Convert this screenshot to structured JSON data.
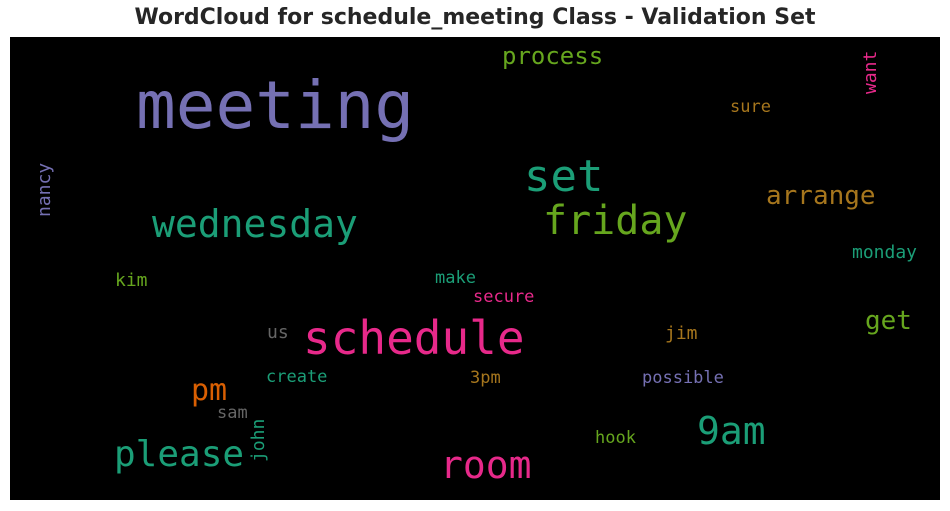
{
  "chart_data": {
    "type": "wordcloud",
    "title": "WordCloud for schedule_meeting Class - Validation Set",
    "background": "#000000",
    "words": [
      {
        "text": "meeting",
        "color": "#7570b3",
        "rotate": 0
      },
      {
        "text": "process",
        "color": "#66a61e",
        "rotate": 0
      },
      {
        "text": "want",
        "color": "#e7298a",
        "rotate": -90
      },
      {
        "text": "sure",
        "color": "#a6761d",
        "rotate": 0
      },
      {
        "text": "set",
        "color": "#1b9e77",
        "rotate": 0
      },
      {
        "text": "nancy",
        "color": "#7570b3",
        "rotate": -90
      },
      {
        "text": "arrange",
        "color": "#a6761d",
        "rotate": 0
      },
      {
        "text": "wednesday",
        "color": "#1b9e77",
        "rotate": 0
      },
      {
        "text": "friday",
        "color": "#66a61e",
        "rotate": 0
      },
      {
        "text": "monday",
        "color": "#1b9e77",
        "rotate": 0
      },
      {
        "text": "kim",
        "color": "#66a61e",
        "rotate": 0
      },
      {
        "text": "make",
        "color": "#1b9e77",
        "rotate": 0
      },
      {
        "text": "secure",
        "color": "#e7298a",
        "rotate": 0
      },
      {
        "text": "get",
        "color": "#66a61e",
        "rotate": 0
      },
      {
        "text": "us",
        "color": "#666666",
        "rotate": 0
      },
      {
        "text": "schedule",
        "color": "#e7298a",
        "rotate": 0
      },
      {
        "text": "jim",
        "color": "#a6761d",
        "rotate": 0
      },
      {
        "text": "pm",
        "color": "#d95f02",
        "rotate": 0
      },
      {
        "text": "create",
        "color": "#1b9e77",
        "rotate": 0
      },
      {
        "text": "3pm",
        "color": "#a6761d",
        "rotate": 0
      },
      {
        "text": "possible",
        "color": "#7570b3",
        "rotate": 0
      },
      {
        "text": "sam",
        "color": "#666666",
        "rotate": 0
      },
      {
        "text": "john",
        "color": "#1b9e77",
        "rotate": -90
      },
      {
        "text": "9am",
        "color": "#1b9e77",
        "rotate": 0
      },
      {
        "text": "please",
        "color": "#1b9e77",
        "rotate": 0
      },
      {
        "text": "hook",
        "color": "#66a61e",
        "rotate": 0
      },
      {
        "text": "room",
        "color": "#e7298a",
        "rotate": 0
      }
    ]
  }
}
